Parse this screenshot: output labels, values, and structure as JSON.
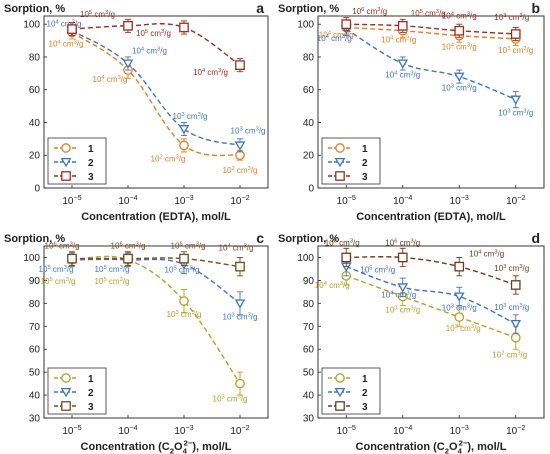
{
  "chart_data": [
    {
      "panel": "a",
      "type": "line",
      "ylabel": "Sorption, %",
      "xlabel": "Concentration (EDTA), mol/L",
      "xlabel_parts": [
        "Concentration (EDTA), mol/L"
      ],
      "x_ticks": [
        "10^-5",
        "10^-4",
        "10^-3",
        "10^-2"
      ],
      "x": [
        -5,
        -4,
        -3,
        -2
      ],
      "x_scale": "log10",
      "ylim": [
        0,
        105
      ],
      "y_ticks": [
        0,
        20,
        40,
        60,
        80,
        100
      ],
      "series": [
        {
          "name": "1",
          "values": [
            95,
            72,
            26,
            20
          ],
          "errors": [
            4,
            5,
            4,
            3
          ],
          "color": "#e57c1f",
          "marker": "circle",
          "labels": [
            "10^4 cm^3/g",
            "10^4 cm^3/g",
            "10^2 cm^3/g",
            "10^2 cm^3/g"
          ]
        },
        {
          "name": "2",
          "values": [
            96,
            76,
            36,
            26
          ],
          "errors": [
            3,
            4,
            4,
            4
          ],
          "color": "#3f73c2",
          "marker": "triangle",
          "labels": [
            "10^4 cm^3/g",
            "10^4 cm^3/g",
            "10^3 cm^3/g",
            "10^3 cm^3/g"
          ]
        },
        {
          "name": "3",
          "values": [
            97,
            99,
            98,
            75
          ],
          "errors": [
            4,
            4,
            4,
            4
          ],
          "color": "#a02b1d",
          "marker": "square",
          "labels": [
            "10^5 cm^3/g",
            "10^5 cm^3/g",
            "",
            "10^4 cm^3/g"
          ]
        }
      ]
    },
    {
      "panel": "b",
      "type": "line",
      "ylabel": "Sorption, %",
      "xlabel": "Concentration (EDTA), mol/L",
      "xlabel_parts": [
        "Concentration (EDTA), mol/L"
      ],
      "x_ticks": [
        "10^-5",
        "10^-4",
        "10^-3",
        "10^-2"
      ],
      "x": [
        -5,
        -4,
        -3,
        -2
      ],
      "x_scale": "log10",
      "ylim": [
        0,
        105
      ],
      "y_ticks": [
        0,
        20,
        40,
        60,
        80,
        100
      ],
      "series": [
        {
          "name": "1",
          "values": [
            98,
            96,
            93,
            91
          ],
          "errors": [
            4,
            4,
            4,
            4
          ],
          "color": "#e57c1f",
          "marker": "circle",
          "labels": [
            "10^4 cm^3/g",
            "10^4 cm^3/g",
            "10^4 cm^3/g",
            "10^3 cm^3/g"
          ]
        },
        {
          "name": "2",
          "values": [
            97,
            76,
            68,
            54
          ],
          "errors": [
            4,
            4,
            4,
            5
          ],
          "color": "#3f73c2",
          "marker": "triangle",
          "labels": [
            "10^4 cm^3/g",
            "10^4 cm^3/g",
            "10^3 cm^3/g",
            "10^3 cm^3/g"
          ]
        },
        {
          "name": "3",
          "values": [
            100,
            99,
            96,
            94
          ],
          "errors": [
            4,
            4,
            4,
            4
          ],
          "color": "#a02b1d",
          "marker": "square",
          "labels": [
            "10^6 cm^3/g",
            "10^5 cm^3/g",
            "10^4 cm^3/g",
            "10^3 cm^3/g"
          ]
        }
      ]
    },
    {
      "panel": "c",
      "type": "line",
      "ylabel": "Sorption, %",
      "xlabel": "Concentration (C2O4 2−), mol/L",
      "xlabel_parts": [
        "Concentration (C",
        "2",
        "O",
        "4",
        "2−",
        "), mol/L"
      ],
      "x_ticks": [
        "10^-5",
        "10^-4",
        "10^-3",
        "10^-2"
      ],
      "x": [
        -5,
        -4,
        -3,
        -2
      ],
      "x_scale": "log10",
      "ylim": [
        30,
        105
      ],
      "y_ticks": [
        30,
        40,
        50,
        60,
        70,
        80,
        90,
        100
      ],
      "series": [
        {
          "name": "1",
          "values": [
            99,
            99,
            81,
            45
          ],
          "errors": [
            3,
            3,
            5,
            5
          ],
          "color": "#b5a024",
          "marker": "circle",
          "labels": [
            "10^5 cm^3/g",
            "10^5 cm^3/g",
            "10^3 cm^3/g",
            "10^3 cm^3/g"
          ]
        },
        {
          "name": "2",
          "values": [
            99,
            99,
            97,
            80
          ],
          "errors": [
            3,
            3,
            4,
            5
          ],
          "color": "#3f73c2",
          "marker": "triangle",
          "labels": [
            "10^5 cm^3/g",
            "10^5 cm^3/g",
            "10^5 cm^3/g",
            "10^3 cm^3/g"
          ]
        },
        {
          "name": "3",
          "values": [
            99.5,
            99.5,
            99.5,
            96
          ],
          "errors": [
            3,
            3,
            3,
            4
          ],
          "color": "#7a4a1a",
          "marker": "square",
          "labels": [
            "10^6 cm^3/g",
            "10^6 cm^3/g",
            "10^6 cm^3/g",
            "10^4 cm^3/g"
          ]
        }
      ]
    },
    {
      "panel": "d",
      "type": "line",
      "ylabel": "Sorption, %",
      "xlabel": "Concentration (C2O4 2−), mol/L",
      "xlabel_parts": [
        "Concentration (C",
        "2",
        "O",
        "4",
        "2−",
        "), mol/L"
      ],
      "x_ticks": [
        "10^-5",
        "10^-4",
        "10^-3",
        "10^-2"
      ],
      "x": [
        -5,
        -4,
        -3,
        -2
      ],
      "x_scale": "log10",
      "ylim": [
        30,
        105
      ],
      "y_ticks": [
        30,
        40,
        50,
        60,
        70,
        80,
        90,
        100
      ],
      "series": [
        {
          "name": "1",
          "values": [
            92,
            83,
            74,
            65
          ],
          "errors": [
            4,
            4,
            4,
            5
          ],
          "color": "#b5a024",
          "marker": "circle",
          "labels": [
            "10^4 cm^3/g",
            "10^3 cm^3/g",
            "10^3 cm^3/g",
            "10^2 cm^3/g"
          ]
        },
        {
          "name": "2",
          "values": [
            96,
            87,
            83,
            71
          ],
          "errors": [
            4,
            4,
            4,
            4
          ],
          "color": "#3f73c2",
          "marker": "triangle",
          "labels": [
            "10^5 cm^3/g",
            "10^4 cm^3/g",
            "10^3 cm^3/g",
            "10^3 cm^3/g"
          ]
        },
        {
          "name": "3",
          "values": [
            100,
            100,
            96,
            88
          ],
          "errors": [
            4,
            4,
            4,
            4
          ],
          "color": "#6e3a1a",
          "marker": "square",
          "labels": [
            "10^6 cm^3/g",
            "10^6 cm^3/g",
            "10^4 cm^3/g",
            "10^3 cm^3/g"
          ]
        }
      ]
    }
  ]
}
